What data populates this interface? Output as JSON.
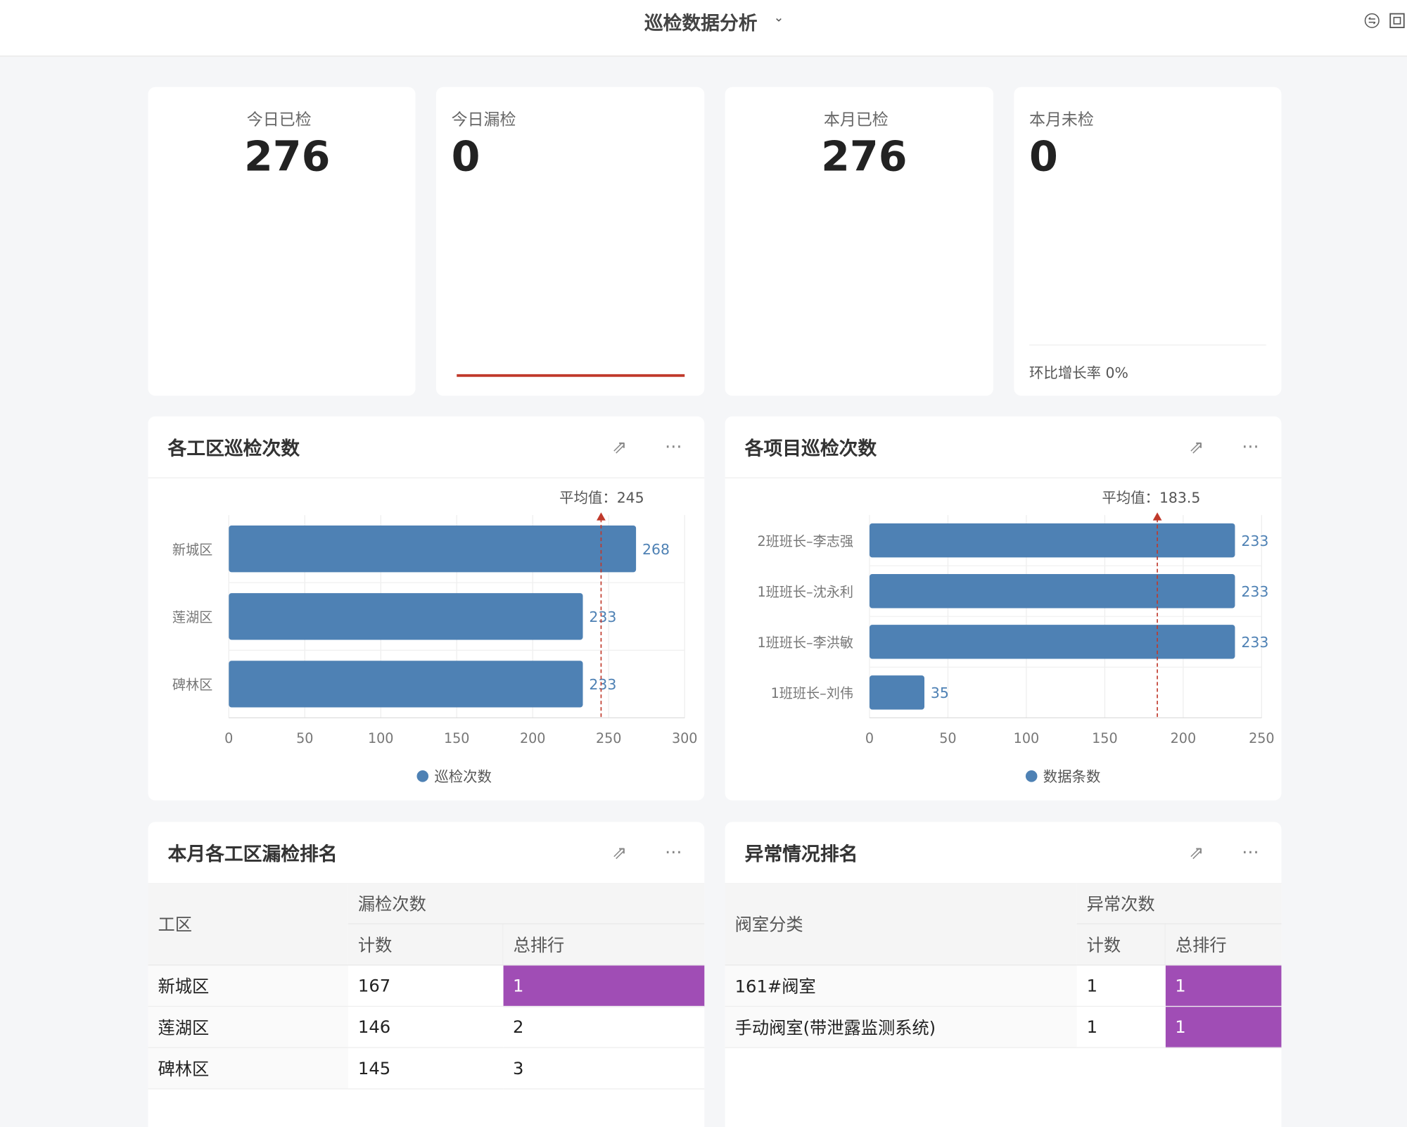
{
  "header": {
    "title": "巡检数据分析",
    "icons": [
      "switch-icon",
      "fullscreen-icon"
    ]
  },
  "kpis": [
    {
      "label": "今日已检",
      "value": "276"
    },
    {
      "label": "今日漏检",
      "value": "0"
    },
    {
      "label": "本月已检",
      "value": "276"
    },
    {
      "label": "本月未检",
      "value": "0",
      "footer": "环比增长率 0%"
    }
  ],
  "colors": {
    "bar": "#4e81b4",
    "avg_line": "#c0392b",
    "rank_bg": "#a04db5",
    "progress": "#c0392b"
  },
  "chart_data": [
    {
      "type": "bar",
      "orientation": "horizontal",
      "title": "各工区巡检次数",
      "categories": [
        "新城区",
        "莲湖区",
        "碑林区"
      ],
      "series": [
        {
          "name": "巡检次数",
          "values": [
            268,
            233,
            233
          ]
        }
      ],
      "xlim": [
        0,
        300
      ],
      "xticks": [
        0,
        50,
        100,
        150,
        200,
        250,
        300
      ],
      "average": {
        "label": "平均值：245",
        "value": 245
      },
      "legend": "bottom",
      "grid": true
    },
    {
      "type": "bar",
      "orientation": "horizontal",
      "title": "各项目巡检次数",
      "categories": [
        "2班班长–李志强",
        "1班班长–沈永利",
        "1班班长–李洪敏",
        "1班班长–刘伟"
      ],
      "series": [
        {
          "name": "数据条数",
          "values": [
            233,
            233,
            233,
            35
          ]
        }
      ],
      "xlim": [
        0,
        250
      ],
      "xticks": [
        0,
        50,
        100,
        150,
        200,
        250
      ],
      "average": {
        "label": "平均值：183.5",
        "value": 183.5
      },
      "legend": "bottom",
      "grid": true
    }
  ],
  "tables": [
    {
      "title": "本月各工区漏检排名",
      "col0": "工区",
      "group": "漏检次数",
      "count": "计数",
      "rank": "总排行",
      "rows": [
        [
          "新城区",
          "167",
          "1"
        ],
        [
          "莲湖区",
          "146",
          "2"
        ],
        [
          "碑林区",
          "145",
          "3"
        ]
      ]
    },
    {
      "title": "异常情况排名",
      "col0": "阀室分类",
      "group": "异常次数",
      "count": "计数",
      "rank": "总排行",
      "rows": [
        [
          "161#阀室",
          "1",
          "1"
        ],
        [
          "手动阀室(带泄露监测系统)",
          "1",
          "1"
        ]
      ]
    }
  ]
}
